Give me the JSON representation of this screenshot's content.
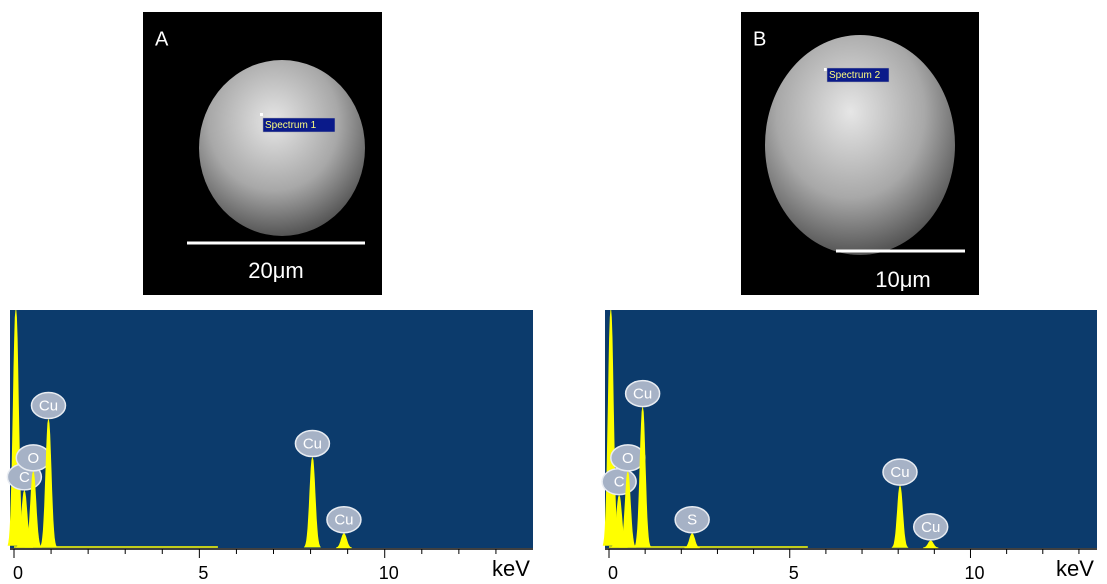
{
  "panels": [
    {
      "image": {
        "label": "A",
        "spectrum_label": "Spectrum 1",
        "scale_bar": "20μm"
      },
      "spectrum": {
        "xlim": [
          0,
          14
        ],
        "ylim": [
          0,
          100
        ],
        "xticks": [
          0,
          5,
          10
        ],
        "minor_xticks": [
          1,
          2,
          3,
          4,
          6,
          7,
          8,
          9,
          11,
          12,
          13
        ],
        "x_label": "keV",
        "peaks": [
          {
            "label": null,
            "energy": 0.05,
            "height": 100
          },
          {
            "label": "C",
            "energy": 0.28,
            "height": 24
          },
          {
            "label": "O",
            "energy": 0.52,
            "height": 32
          },
          {
            "label": "Cu",
            "energy": 0.93,
            "height": 54
          },
          {
            "label": "Cu",
            "energy": 8.05,
            "height": 38
          },
          {
            "label": "Cu",
            "energy": 8.9,
            "height": 6
          }
        ]
      }
    },
    {
      "image": {
        "label": "B",
        "spectrum_label": "Spectrum 2",
        "scale_bar": "10μm"
      },
      "spectrum": {
        "xlim": [
          0,
          13.5
        ],
        "ylim": [
          0,
          100
        ],
        "xticks": [
          0,
          5,
          10
        ],
        "minor_xticks": [
          1,
          2,
          3,
          4,
          6,
          7,
          8,
          9,
          11,
          12,
          13
        ],
        "x_label": "keV",
        "peaks": [
          {
            "label": null,
            "energy": 0.05,
            "height": 100
          },
          {
            "label": "C",
            "energy": 0.28,
            "height": 22
          },
          {
            "label": "O",
            "energy": 0.52,
            "height": 32
          },
          {
            "label": "Cu",
            "energy": 0.93,
            "height": 59
          },
          {
            "label": "S",
            "energy": 2.3,
            "height": 6
          },
          {
            "label": "Cu",
            "energy": 8.05,
            "height": 26
          },
          {
            "label": "Cu",
            "energy": 8.9,
            "height": 3
          }
        ]
      }
    }
  ]
}
